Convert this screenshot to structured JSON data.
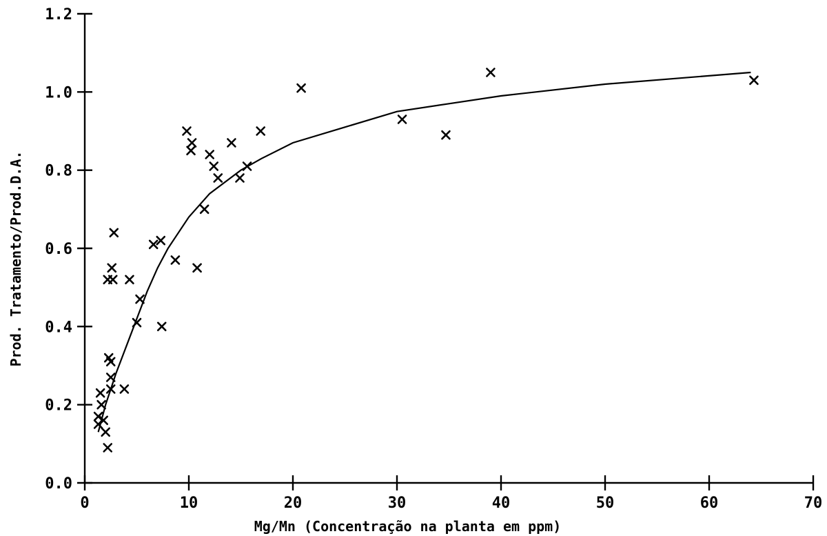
{
  "chart_data": {
    "type": "scatter",
    "xlabel": "Mg/Mn (Concentração na planta em ppm)",
    "ylabel": "Prod. Tratamento/Prod.D.A.",
    "xlim": [
      0,
      70
    ],
    "ylim": [
      0,
      1.2
    ],
    "x_ticks": [
      0,
      10,
      20,
      30,
      40,
      50,
      60,
      70
    ],
    "x_tick_labels": [
      "0",
      "10",
      "20",
      "30",
      "40",
      "50",
      "60",
      "70"
    ],
    "y_ticks": [
      0,
      0.2,
      0.4,
      0.6,
      0.8,
      1.0,
      1.2
    ],
    "y_tick_labels": [
      "0.0",
      "0.2",
      "0.4",
      "0.6",
      "0.8",
      "1.0",
      "1.2"
    ],
    "grid": false,
    "marker": "x",
    "series": [
      {
        "points": [
          [
            1.3,
            0.15
          ],
          [
            1.3,
            0.17
          ],
          [
            1.5,
            0.23
          ],
          [
            1.6,
            0.2
          ],
          [
            1.8,
            0.16
          ],
          [
            2.0,
            0.13
          ],
          [
            2.2,
            0.09
          ],
          [
            2.2,
            0.52
          ],
          [
            2.3,
            0.32
          ],
          [
            2.5,
            0.31
          ],
          [
            2.5,
            0.27
          ],
          [
            2.5,
            0.24
          ],
          [
            2.6,
            0.55
          ],
          [
            2.7,
            0.52
          ],
          [
            2.8,
            0.64
          ],
          [
            3.8,
            0.24
          ],
          [
            4.3,
            0.52
          ],
          [
            5.0,
            0.41
          ],
          [
            5.3,
            0.47
          ],
          [
            6.6,
            0.61
          ],
          [
            7.3,
            0.62
          ],
          [
            7.4,
            0.4
          ],
          [
            8.7,
            0.57
          ],
          [
            9.8,
            0.9
          ],
          [
            10.2,
            0.85
          ],
          [
            10.3,
            0.87
          ],
          [
            10.8,
            0.55
          ],
          [
            11.5,
            0.7
          ],
          [
            12.0,
            0.84
          ],
          [
            12.4,
            0.81
          ],
          [
            12.8,
            0.78
          ],
          [
            14.1,
            0.87
          ],
          [
            14.9,
            0.78
          ],
          [
            15.6,
            0.81
          ],
          [
            16.9,
            0.9
          ],
          [
            20.8,
            1.01
          ],
          [
            30.5,
            0.93
          ],
          [
            34.7,
            0.89
          ],
          [
            39.0,
            1.05
          ],
          [
            64.3,
            1.03
          ]
        ]
      }
    ],
    "fit_curve": {
      "points": [
        [
          1.3,
          0.13
        ],
        [
          1.6,
          0.16
        ],
        [
          2.0,
          0.2
        ],
        [
          2.5,
          0.24
        ],
        [
          3.0,
          0.28
        ],
        [
          4.0,
          0.35
        ],
        [
          5.0,
          0.42
        ],
        [
          6.0,
          0.49
        ],
        [
          7.0,
          0.55
        ],
        [
          8.0,
          0.6
        ],
        [
          10.0,
          0.68
        ],
        [
          12.0,
          0.74
        ],
        [
          15.0,
          0.8
        ],
        [
          17.0,
          0.83
        ],
        [
          20.0,
          0.87
        ],
        [
          25.0,
          0.91
        ],
        [
          30.0,
          0.95
        ],
        [
          35.0,
          0.97
        ],
        [
          40.0,
          0.99
        ],
        [
          50.0,
          1.02
        ],
        [
          64.0,
          1.05
        ]
      ]
    }
  }
}
